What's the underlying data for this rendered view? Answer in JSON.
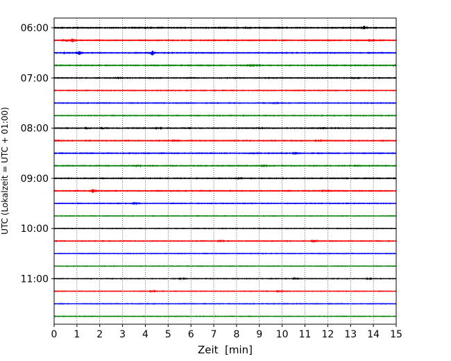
{
  "chart_data": {
    "type": "line",
    "title": "",
    "xlabel": "Zeit  [min]",
    "ylabel": "UTC (Lokalzeit = UTC + 01:00)",
    "xlim": [
      0,
      15
    ],
    "x_ticks": [
      0,
      1,
      2,
      3,
      4,
      5,
      6,
      7,
      8,
      9,
      10,
      11,
      12,
      13,
      14,
      15
    ],
    "x_tick_labels": [
      "0",
      "1",
      "2",
      "3",
      "4",
      "5",
      "6",
      "7",
      "8",
      "9",
      "10",
      "11",
      "12",
      "13",
      "14",
      "15"
    ],
    "grid": "vertical dotted lines at each minute",
    "y_axis_inverted": true,
    "y_ticks": [
      "06:00",
      "07:00",
      "08:00",
      "09:00",
      "10:00",
      "11:00"
    ],
    "y_tick_labels": [
      "06:00",
      "07:00",
      "08:00",
      "09:00",
      "10:00",
      "11:00"
    ],
    "color_cycle": [
      "#000000",
      "#ff0000",
      "#0000ff",
      "#008000"
    ],
    "trace_interval_min": 15,
    "series": [
      {
        "start": "06:00",
        "color": "#000000",
        "noise": 0.45,
        "events": [
          {
            "x": 4.1,
            "a": 1.3
          },
          {
            "x": 8.5,
            "a": 1.4
          },
          {
            "x": 13.6,
            "a": 2.2
          }
        ]
      },
      {
        "start": "06:15",
        "color": "#ff0000",
        "noise": 0.4,
        "events": [
          {
            "x": 0.5,
            "a": 1.8
          },
          {
            "x": 0.8,
            "a": 2.6
          },
          {
            "x": 13.9,
            "a": 1.1
          }
        ]
      },
      {
        "start": "06:30",
        "color": "#0000ff",
        "noise": 0.4,
        "events": [
          {
            "x": 0.55,
            "a": 1.2
          },
          {
            "x": 1.1,
            "a": 2.8
          },
          {
            "x": 4.3,
            "a": 3.4
          }
        ]
      },
      {
        "start": "06:45",
        "color": "#008000",
        "noise": 0.4,
        "events": [
          {
            "x": 8.6,
            "a": 1.8
          },
          {
            "x": 8.9,
            "a": 1.5
          },
          {
            "x": 15.0,
            "a": 1.6
          }
        ]
      },
      {
        "start": "07:00",
        "color": "#000000",
        "noise": 0.4,
        "events": [
          {
            "x": 2.8,
            "a": 1.4
          },
          {
            "x": 13.2,
            "a": 1.0
          }
        ]
      },
      {
        "start": "07:15",
        "color": "#ff0000",
        "noise": 0.35,
        "events": []
      },
      {
        "start": "07:30",
        "color": "#0000ff",
        "noise": 0.35,
        "events": [
          {
            "x": 9.7,
            "a": 1.0
          }
        ]
      },
      {
        "start": "07:45",
        "color": "#008000",
        "noise": 0.35,
        "events": []
      },
      {
        "start": "08:00",
        "color": "#000000",
        "noise": 0.4,
        "events": [
          {
            "x": 1.5,
            "a": 1.1
          },
          {
            "x": 2.2,
            "a": 1.2
          },
          {
            "x": 4.6,
            "a": 1.0
          },
          {
            "x": 9.0,
            "a": 1.2
          },
          {
            "x": 11.8,
            "a": 1.3
          }
        ]
      },
      {
        "start": "08:15",
        "color": "#ff0000",
        "noise": 0.4,
        "events": [
          {
            "x": 0.2,
            "a": 1.2
          },
          {
            "x": 5.3,
            "a": 1.4
          },
          {
            "x": 11.6,
            "a": 1.0
          }
        ]
      },
      {
        "start": "08:30",
        "color": "#0000ff",
        "noise": 0.4,
        "events": [
          {
            "x": 10.6,
            "a": 1.8
          },
          {
            "x": 8.8,
            "a": 1.0
          }
        ]
      },
      {
        "start": "08:45",
        "color": "#008000",
        "noise": 0.4,
        "events": [
          {
            "x": 3.7,
            "a": 1.1
          },
          {
            "x": 9.2,
            "a": 1.5
          },
          {
            "x": 13.3,
            "a": 1.4
          }
        ]
      },
      {
        "start": "09:00",
        "color": "#000000",
        "noise": 0.4,
        "events": [
          {
            "x": 8.1,
            "a": 1.5
          }
        ]
      },
      {
        "start": "09:15",
        "color": "#ff0000",
        "noise": 0.4,
        "events": [
          {
            "x": 1.7,
            "a": 2.6
          },
          {
            "x": 11.9,
            "a": 1.1
          }
        ]
      },
      {
        "start": "09:30",
        "color": "#0000ff",
        "noise": 0.35,
        "events": [
          {
            "x": 3.6,
            "a": 2.0
          }
        ]
      },
      {
        "start": "09:45",
        "color": "#008000",
        "noise": 0.3,
        "events": []
      },
      {
        "start": "10:00",
        "color": "#000000",
        "noise": 0.3,
        "events": []
      },
      {
        "start": "10:15",
        "color": "#ff0000",
        "noise": 0.35,
        "events": [
          {
            "x": 7.3,
            "a": 1.3
          },
          {
            "x": 11.4,
            "a": 1.8
          }
        ]
      },
      {
        "start": "10:30",
        "color": "#0000ff",
        "noise": 0.3,
        "events": []
      },
      {
        "start": "10:45",
        "color": "#008000",
        "noise": 0.3,
        "events": []
      },
      {
        "start": "11:00",
        "color": "#000000",
        "noise": 0.3,
        "events": [
          {
            "x": 5.6,
            "a": 0.9
          },
          {
            "x": 10.6,
            "a": 1.1
          },
          {
            "x": 13.8,
            "a": 1.0
          }
        ]
      },
      {
        "start": "11:15",
        "color": "#ff0000",
        "noise": 0.3,
        "events": [
          {
            "x": 4.3,
            "a": 1.0
          },
          {
            "x": 9.9,
            "a": 1.2
          }
        ]
      },
      {
        "start": "11:30",
        "color": "#0000ff",
        "noise": 0.3,
        "events": []
      },
      {
        "start": "11:45",
        "color": "#008000",
        "noise": 0.3,
        "events": []
      }
    ]
  }
}
